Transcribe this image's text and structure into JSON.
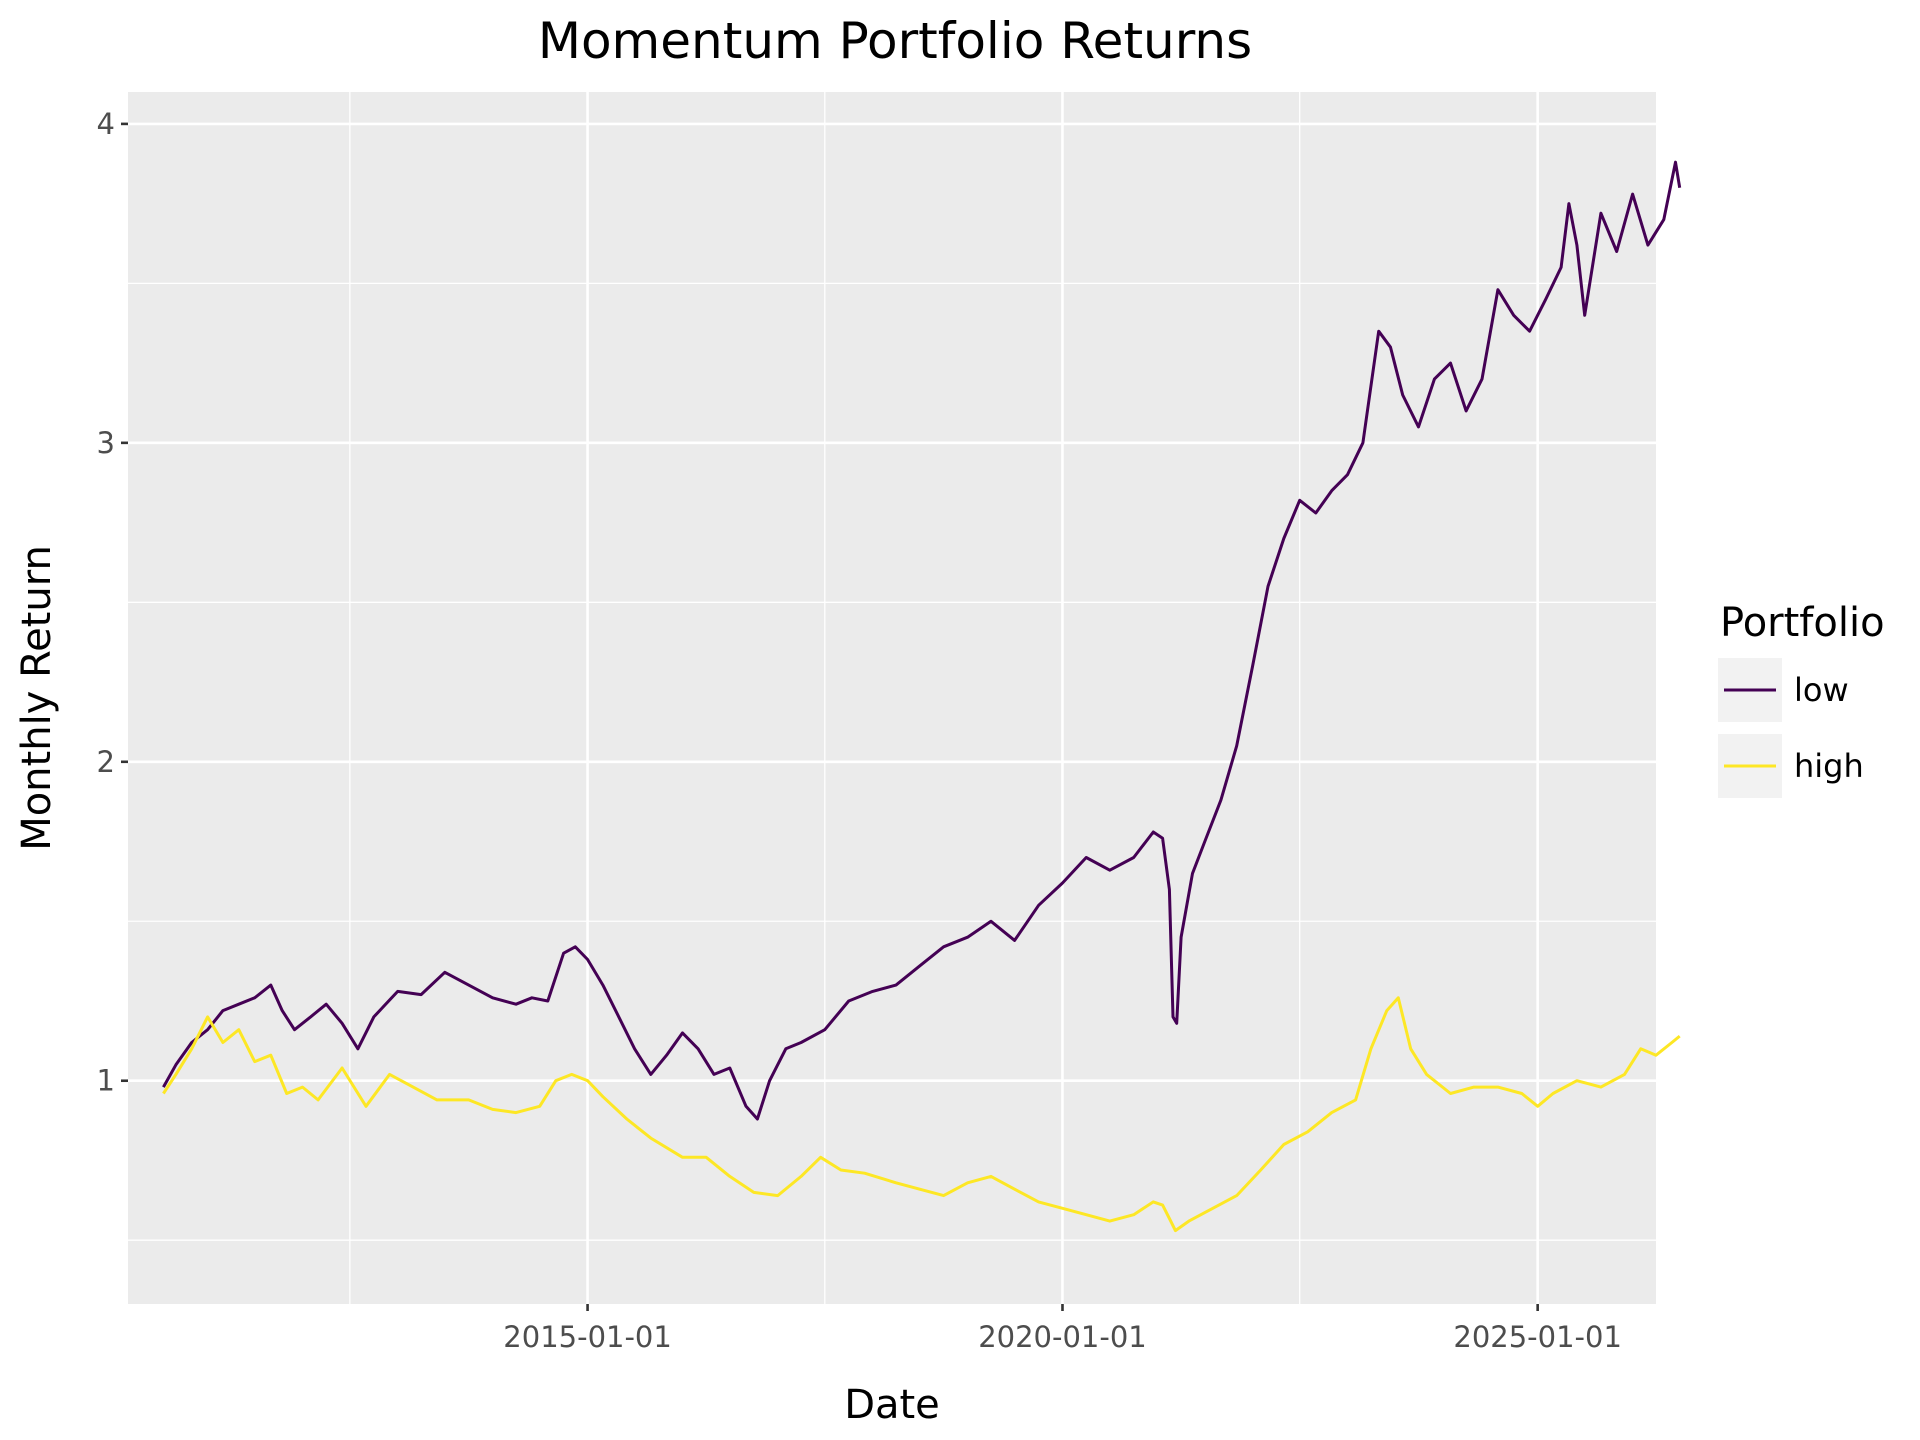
{
  "chart_data": {
    "type": "line",
    "title": "Momentum Portfolio Returns",
    "xlabel": "Date",
    "ylabel": "Monthly Return",
    "x_axis_type": "date",
    "xlim": [
      "2010-03-01",
      "2026-04-01"
    ],
    "ylim": [
      0.3,
      4.1
    ],
    "x_major_ticks": [
      "2015-01-01",
      "2020-01-01",
      "2025-01-01"
    ],
    "x_minor_ticks": [
      "2012-07-01",
      "2017-07-01",
      "2022-07-01"
    ],
    "y_major_ticks": [
      1,
      2,
      3,
      4
    ],
    "y_minor_ticks": [
      0.5,
      1.5,
      2.5,
      3.5
    ],
    "grid": true,
    "panel_background": "#ebebeb",
    "legend": {
      "title": "Portfolio",
      "position": "right"
    },
    "series": [
      {
        "name": "low",
        "color": "#440154",
        "points": [
          [
            "2010-07-15",
            0.98
          ],
          [
            "2010-09-01",
            1.05
          ],
          [
            "2010-11-01",
            1.12
          ],
          [
            "2011-01-01",
            1.16
          ],
          [
            "2011-03-01",
            1.22
          ],
          [
            "2011-05-01",
            1.24
          ],
          [
            "2011-07-01",
            1.26
          ],
          [
            "2011-09-01",
            1.3
          ],
          [
            "2011-10-15",
            1.22
          ],
          [
            "2011-12-01",
            1.16
          ],
          [
            "2012-02-01",
            1.2
          ],
          [
            "2012-04-01",
            1.24
          ],
          [
            "2012-06-01",
            1.18
          ],
          [
            "2012-08-01",
            1.1
          ],
          [
            "2012-10-01",
            1.2
          ],
          [
            "2013-01-01",
            1.28
          ],
          [
            "2013-04-01",
            1.27
          ],
          [
            "2013-07-01",
            1.34
          ],
          [
            "2013-10-01",
            1.3
          ],
          [
            "2014-01-01",
            1.26
          ],
          [
            "2014-04-01",
            1.24
          ],
          [
            "2014-06-01",
            1.26
          ],
          [
            "2014-08-01",
            1.25
          ],
          [
            "2014-10-01",
            1.4
          ],
          [
            "2014-11-15",
            1.42
          ],
          [
            "2015-01-01",
            1.38
          ],
          [
            "2015-03-01",
            1.3
          ],
          [
            "2015-05-01",
            1.2
          ],
          [
            "2015-07-01",
            1.1
          ],
          [
            "2015-09-01",
            1.02
          ],
          [
            "2015-11-01",
            1.08
          ],
          [
            "2016-01-01",
            1.15
          ],
          [
            "2016-03-01",
            1.1
          ],
          [
            "2016-05-01",
            1.02
          ],
          [
            "2016-07-01",
            1.04
          ],
          [
            "2016-09-01",
            0.92
          ],
          [
            "2016-10-15",
            0.88
          ],
          [
            "2016-12-01",
            1.0
          ],
          [
            "2017-02-01",
            1.1
          ],
          [
            "2017-04-01",
            1.12
          ],
          [
            "2017-07-01",
            1.16
          ],
          [
            "2017-10-01",
            1.25
          ],
          [
            "2018-01-01",
            1.28
          ],
          [
            "2018-04-01",
            1.3
          ],
          [
            "2018-07-01",
            1.36
          ],
          [
            "2018-10-01",
            1.42
          ],
          [
            "2019-01-01",
            1.45
          ],
          [
            "2019-04-01",
            1.5
          ],
          [
            "2019-07-01",
            1.44
          ],
          [
            "2019-10-01",
            1.55
          ],
          [
            "2020-01-01",
            1.62
          ],
          [
            "2020-04-01",
            1.7
          ],
          [
            "2020-07-01",
            1.66
          ],
          [
            "2020-10-01",
            1.7
          ],
          [
            "2020-12-15",
            1.78
          ],
          [
            "2021-01-20",
            1.76
          ],
          [
            "2021-02-15",
            1.6
          ],
          [
            "2021-03-01",
            1.2
          ],
          [
            "2021-03-15",
            1.18
          ],
          [
            "2021-04-01",
            1.45
          ],
          [
            "2021-05-15",
            1.65
          ],
          [
            "2021-07-01",
            1.75
          ],
          [
            "2021-09-01",
            1.88
          ],
          [
            "2021-11-01",
            2.05
          ],
          [
            "2022-01-01",
            2.3
          ],
          [
            "2022-03-01",
            2.55
          ],
          [
            "2022-05-01",
            2.7
          ],
          [
            "2022-07-01",
            2.82
          ],
          [
            "2022-09-01",
            2.78
          ],
          [
            "2022-11-01",
            2.85
          ],
          [
            "2023-01-01",
            2.9
          ],
          [
            "2023-03-01",
            3.0
          ],
          [
            "2023-05-01",
            3.35
          ],
          [
            "2023-06-15",
            3.3
          ],
          [
            "2023-08-01",
            3.15
          ],
          [
            "2023-10-01",
            3.05
          ],
          [
            "2023-12-01",
            3.2
          ],
          [
            "2024-02-01",
            3.25
          ],
          [
            "2024-04-01",
            3.1
          ],
          [
            "2024-06-01",
            3.2
          ],
          [
            "2024-08-01",
            3.48
          ],
          [
            "2024-10-01",
            3.4
          ],
          [
            "2024-12-01",
            3.35
          ],
          [
            "2025-02-01",
            3.45
          ],
          [
            "2025-04-01",
            3.55
          ],
          [
            "2025-05-01",
            3.75
          ],
          [
            "2025-06-01",
            3.62
          ],
          [
            "2025-07-01",
            3.4
          ],
          [
            "2025-09-01",
            3.72
          ],
          [
            "2025-11-01",
            3.6
          ],
          [
            "2026-01-01",
            3.78
          ],
          [
            "2026-03-01",
            3.62
          ],
          [
            "2026-05-01",
            3.7
          ],
          [
            "2026-06-15",
            3.88
          ],
          [
            "2026-07-01",
            3.8
          ]
        ]
      },
      {
        "name": "high",
        "color": "#fde725",
        "points": [
          [
            "2010-07-15",
            0.96
          ],
          [
            "2010-09-01",
            1.02
          ],
          [
            "2010-11-01",
            1.1
          ],
          [
            "2011-01-01",
            1.2
          ],
          [
            "2011-03-01",
            1.12
          ],
          [
            "2011-05-01",
            1.16
          ],
          [
            "2011-07-01",
            1.06
          ],
          [
            "2011-09-01",
            1.08
          ],
          [
            "2011-11-01",
            0.96
          ],
          [
            "2012-01-01",
            0.98
          ],
          [
            "2012-03-01",
            0.94
          ],
          [
            "2012-06-01",
            1.04
          ],
          [
            "2012-09-01",
            0.92
          ],
          [
            "2012-12-01",
            1.02
          ],
          [
            "2013-03-01",
            0.98
          ],
          [
            "2013-06-01",
            0.94
          ],
          [
            "2013-10-01",
            0.94
          ],
          [
            "2014-01-01",
            0.91
          ],
          [
            "2014-04-01",
            0.9
          ],
          [
            "2014-07-01",
            0.92
          ],
          [
            "2014-09-01",
            1.0
          ],
          [
            "2014-11-01",
            1.02
          ],
          [
            "2015-01-01",
            1.0
          ],
          [
            "2015-03-01",
            0.95
          ],
          [
            "2015-06-01",
            0.88
          ],
          [
            "2015-09-01",
            0.82
          ],
          [
            "2016-01-01",
            0.76
          ],
          [
            "2016-04-01",
            0.76
          ],
          [
            "2016-07-01",
            0.7
          ],
          [
            "2016-10-01",
            0.65
          ],
          [
            "2017-01-01",
            0.64
          ],
          [
            "2017-04-01",
            0.7
          ],
          [
            "2017-06-15",
            0.76
          ],
          [
            "2017-09-01",
            0.72
          ],
          [
            "2017-12-01",
            0.71
          ],
          [
            "2018-04-01",
            0.68
          ],
          [
            "2018-07-01",
            0.66
          ],
          [
            "2018-10-01",
            0.64
          ],
          [
            "2019-01-01",
            0.68
          ],
          [
            "2019-04-01",
            0.7
          ],
          [
            "2019-07-01",
            0.66
          ],
          [
            "2019-10-01",
            0.62
          ],
          [
            "2020-01-01",
            0.6
          ],
          [
            "2020-04-01",
            0.58
          ],
          [
            "2020-07-01",
            0.56
          ],
          [
            "2020-10-01",
            0.58
          ],
          [
            "2020-12-15",
            0.62
          ],
          [
            "2021-01-20",
            0.61
          ],
          [
            "2021-02-20",
            0.56
          ],
          [
            "2021-03-10",
            0.53
          ],
          [
            "2021-05-01",
            0.56
          ],
          [
            "2021-08-01",
            0.6
          ],
          [
            "2021-11-01",
            0.64
          ],
          [
            "2022-02-01",
            0.72
          ],
          [
            "2022-05-01",
            0.8
          ],
          [
            "2022-08-01",
            0.84
          ],
          [
            "2022-11-01",
            0.9
          ],
          [
            "2023-02-01",
            0.94
          ],
          [
            "2023-04-01",
            1.1
          ],
          [
            "2023-06-01",
            1.22
          ],
          [
            "2023-07-15",
            1.26
          ],
          [
            "2023-09-01",
            1.1
          ],
          [
            "2023-11-01",
            1.02
          ],
          [
            "2024-02-01",
            0.96
          ],
          [
            "2024-05-01",
            0.98
          ],
          [
            "2024-08-01",
            0.98
          ],
          [
            "2024-11-01",
            0.96
          ],
          [
            "2025-01-01",
            0.92
          ],
          [
            "2025-03-01",
            0.96
          ],
          [
            "2025-06-01",
            1.0
          ],
          [
            "2025-09-01",
            0.98
          ],
          [
            "2025-12-01",
            1.02
          ],
          [
            "2026-02-01",
            1.1
          ],
          [
            "2026-04-01",
            1.08
          ],
          [
            "2026-06-01",
            1.12
          ],
          [
            "2026-07-01",
            1.14
          ]
        ]
      }
    ]
  }
}
